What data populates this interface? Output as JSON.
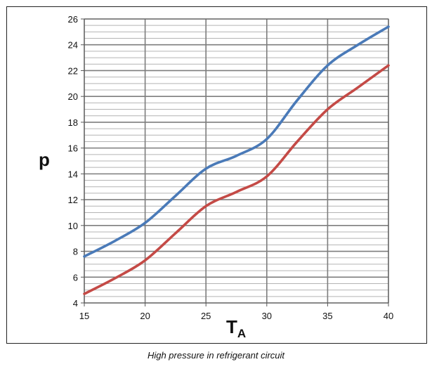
{
  "caption": "High pressure in refrigerant circuit",
  "chart_data": {
    "type": "line",
    "title": "",
    "xlabel": "T",
    "xlabel_subscript": "A",
    "ylabel": "p",
    "xlim": [
      15,
      40
    ],
    "ylim": [
      4,
      26
    ],
    "x_ticks": [
      15,
      20,
      25,
      30,
      35,
      40
    ],
    "y_ticks": [
      4,
      6,
      8,
      10,
      12,
      14,
      16,
      18,
      20,
      22,
      24,
      26
    ],
    "y_minor_step": 0.5,
    "grid": true,
    "x": [
      15,
      17.5,
      20,
      22.5,
      25,
      27.5,
      30,
      32.5,
      35,
      37.5,
      40
    ],
    "series": [
      {
        "color": "#4a7ab8",
        "values": [
          7.6,
          8.8,
          10.2,
          12.3,
          14.4,
          15.4,
          16.7,
          19.7,
          22.4,
          24.0,
          25.4
        ]
      },
      {
        "color": "#c44a46",
        "values": [
          4.7,
          5.9,
          7.3,
          9.4,
          11.5,
          12.6,
          13.8,
          16.5,
          19.0,
          20.7,
          22.4
        ]
      }
    ]
  }
}
